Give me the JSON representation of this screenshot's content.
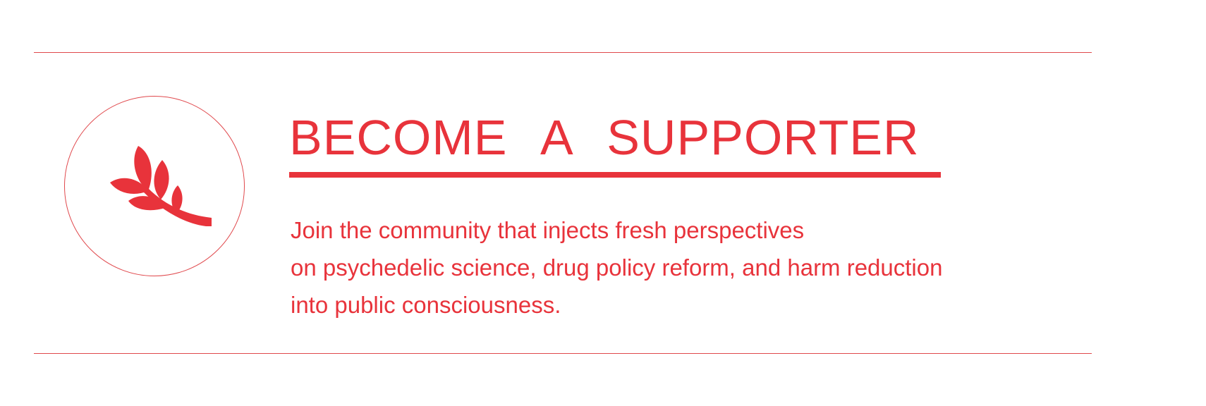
{
  "colors": {
    "accent": "#e8333b",
    "rule": "#e0484c",
    "background": "#ffffff"
  },
  "badge": {
    "icon": "olive-branch-icon"
  },
  "cta": {
    "heading": "BECOME A SUPPORTER",
    "lines": [
      "Join the community that injects fresh perspectives",
      "on psychedelic science, drug policy reform, and harm reduction",
      "into public consciousness."
    ]
  }
}
